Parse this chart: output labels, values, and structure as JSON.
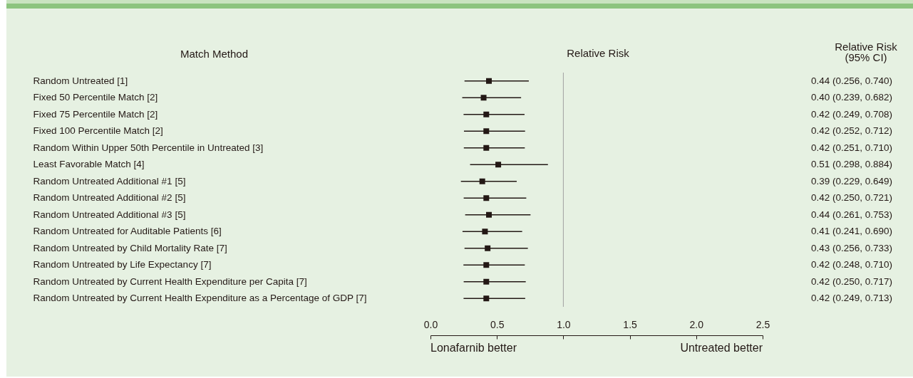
{
  "chart_data": {
    "type": "scatter",
    "orientation": "horizontal",
    "ylabel": "Match Method",
    "xlabel": "Relative Risk",
    "categories": [
      "Random Untreated [1]",
      "Fixed 50 Percentile Match [2]",
      "Fixed 75 Percentile Match [2]",
      "Fixed 100 Percentile Match [2]",
      "Random Within Upper 50th Percentile in Untreated [3]",
      "Least Favorable Match [4]",
      "Random Untreated Additional #1 [5]",
      "Random Untreated Additional #2 [5]",
      "Random Untreated Additional #3 [5]",
      "Random Untreated for Auditable Patients [6]",
      "Random Untreated by Child Mortality Rate [7]",
      "Random Untreated by Life Expectancy [7]",
      "Random Untreated by Current Health Expenditure per Capita [7]",
      "Random Untreated by Current Health Expenditure as a Percentage of GDP [7]"
    ],
    "values": [
      0.44,
      0.4,
      0.42,
      0.42,
      0.42,
      0.51,
      0.39,
      0.42,
      0.44,
      0.41,
      0.43,
      0.42,
      0.42,
      0.42
    ],
    "errors": [
      [
        0.256,
        0.74
      ],
      [
        0.239,
        0.682
      ],
      [
        0.249,
        0.708
      ],
      [
        0.252,
        0.712
      ],
      [
        0.251,
        0.71
      ],
      [
        0.298,
        0.884
      ],
      [
        0.229,
        0.649
      ],
      [
        0.25,
        0.721
      ],
      [
        0.261,
        0.753
      ],
      [
        0.241,
        0.69
      ],
      [
        0.256,
        0.733
      ],
      [
        0.248,
        0.71
      ],
      [
        0.25,
        0.717
      ],
      [
        0.249,
        0.713
      ]
    ],
    "value_labels": [
      "0.44 (0.256, 0.740)",
      "0.40 (0.239, 0.682)",
      "0.42 (0.249, 0.708)",
      "0.42 (0.252, 0.712)",
      "0.42 (0.251, 0.710)",
      "0.51 (0.298, 0.884)",
      "0.39 (0.229, 0.649)",
      "0.42 (0.250, 0.721)",
      "0.44 (0.261, 0.753)",
      "0.41 (0.241, 0.690)",
      "0.43 (0.256, 0.733)",
      "0.42 (0.248, 0.710)",
      "0.42 (0.250, 0.717)",
      "0.42 (0.249, 0.713)"
    ],
    "color": "#231815",
    "marker": "square",
    "xlim": [
      0,
      2.5
    ],
    "xticks": [
      {
        "value": 0,
        "label": "0.0"
      },
      0.5,
      {
        "value": 1,
        "label": "1.0"
      },
      1.5,
      {
        "value": 2,
        "label": "2.0"
      },
      2.5
    ],
    "ref_lines": [
      {
        "axis": "x",
        "value": 1,
        "color": "#a0a0a0"
      }
    ],
    "annotations": [
      "Relative Risk\n(95% CI)",
      "Lonafarnib better",
      "Untreated better"
    ]
  }
}
